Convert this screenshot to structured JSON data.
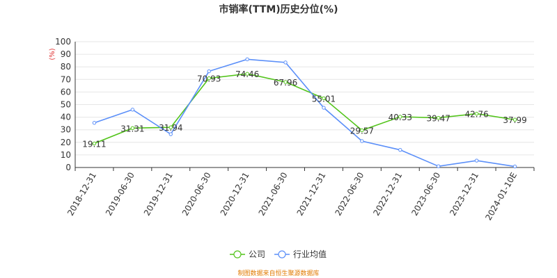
{
  "chart_data": {
    "type": "line",
    "title": "市销率(TTM)历史分位(%)",
    "ylabel_unit": "(%)",
    "ylim": [
      0,
      100
    ],
    "yticks": [
      0,
      10,
      20,
      30,
      40,
      50,
      60,
      70,
      80,
      90,
      100
    ],
    "categories": [
      "2018-12-31",
      "2019-06-30",
      "2019-12-31",
      "2020-06-30",
      "2020-12-31",
      "2021-06-30",
      "2021-12-31",
      "2022-06-30",
      "2022-12-31",
      "2023-06-30",
      "2023-12-31",
      "2024-01-10E"
    ],
    "grid": true,
    "legend_position": "bottom-center",
    "series": [
      {
        "name": "公司",
        "color": "#52c41a",
        "values": [
          19.11,
          31.31,
          31.94,
          70.93,
          74.46,
          67.96,
          55.01,
          29.57,
          40.33,
          39.47,
          42.76,
          37.99
        ],
        "data_labels": [
          "19.11",
          "31.31",
          "31.94",
          "70.93",
          "74.46",
          "67.96",
          "55.01",
          "29.57",
          "40.33",
          "39.47",
          "42.76",
          "37.99"
        ]
      },
      {
        "name": "行业均值",
        "color": "#5b8ff9",
        "values": [
          35.5,
          46.0,
          26.5,
          76.5,
          86.0,
          83.5,
          47.5,
          21.0,
          14.0,
          1.0,
          5.5,
          0.8
        ]
      }
    ]
  },
  "footer": {
    "source_text": "制图数据来自恒生聚源数据库"
  }
}
